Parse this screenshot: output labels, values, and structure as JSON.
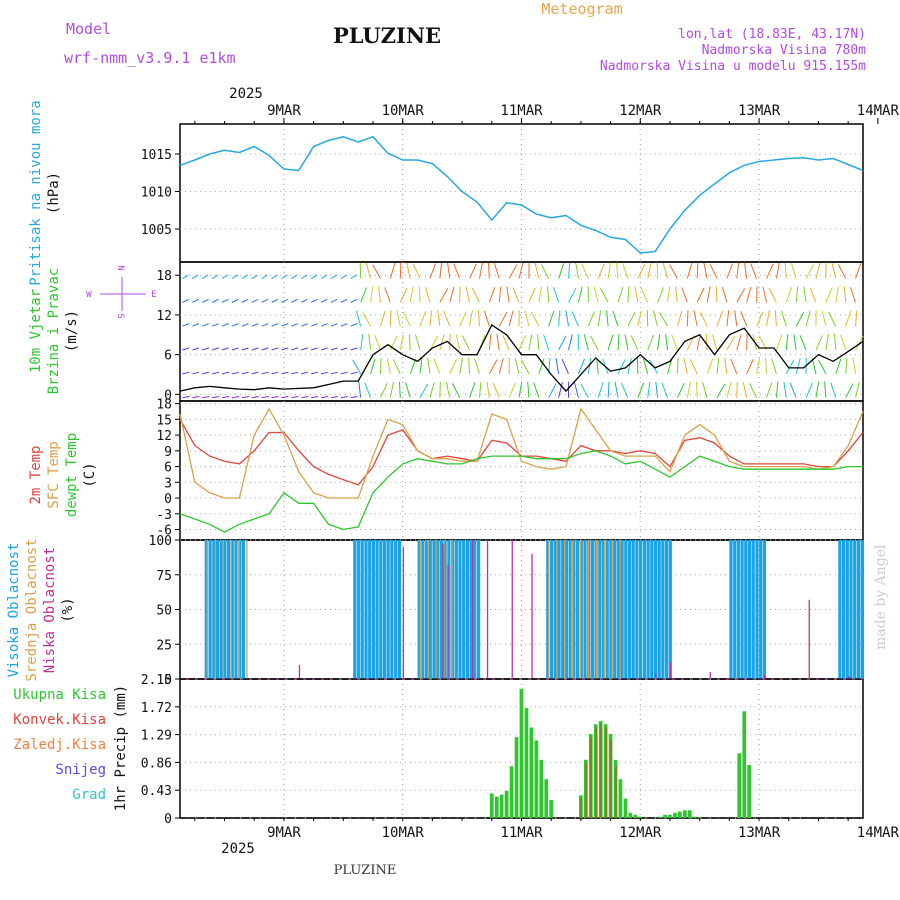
{
  "header": {
    "model_label": "Model",
    "model_name": "wrf-nmm_v3.9.1 e1km",
    "title": "PLUZINE",
    "meteogram_label": "Meteogram",
    "coords": "lon,lat (18.83E, 43.17N)",
    "elevation": "Nadmorska Visina 780m",
    "model_elevation": "Nadmorska Visina u modelu 915.155m",
    "footer_title": "PLUZINE",
    "credit": "made by Angel"
  },
  "time_axis": {
    "year": "2025",
    "days": [
      "9MAR",
      "10MAR",
      "11MAR",
      "12MAR",
      "13MAR",
      "14MAR"
    ],
    "start_hour": 3,
    "end_hour": 141
  },
  "colors": {
    "pressure": "#29a8e0",
    "wind_speed": "#000000",
    "t2m": "#e0443c",
    "tsfc": "#d9a24a",
    "dewpt": "#2fc62f",
    "cloud_high": "#1aa3e6",
    "cloud_mid": "#d9a24a",
    "cloud_low": "#c0309c",
    "precip_total": "#2fc62f",
    "precip_conv": "#e0443c",
    "precip_frozen": "#f08040",
    "precip_snow": "#5a4ce0",
    "precip_graupel": "#2ec6c6",
    "model_text": "#b04ce0",
    "meteogram_text": "#e8a84c"
  },
  "chart_data": [
    {
      "type": "line",
      "panel": "pressure",
      "ylabel": [
        "Pritisak na nivou mora",
        "(hPa)"
      ],
      "yticks": [
        1005,
        1010,
        1015
      ],
      "ylim": [
        1000.6,
        1019
      ],
      "series": [
        {
          "name": "Pritisak na nivou mora",
          "x": [
            3,
            6,
            9,
            12,
            15,
            18,
            21,
            24,
            27,
            30,
            33,
            36,
            39,
            42,
            45,
            48,
            51,
            54,
            57,
            60,
            63,
            66,
            69,
            72,
            75,
            78,
            81,
            84,
            87,
            90,
            93,
            96,
            99,
            102,
            105,
            108,
            111,
            114,
            117,
            120,
            123,
            126,
            129,
            132,
            135,
            138,
            141
          ],
          "values": [
            1013.5,
            1014.2,
            1015,
            1015.5,
            1015.2,
            1016,
            1014.8,
            1013,
            1012.8,
            1016,
            1016.8,
            1017.3,
            1016.6,
            1017.3,
            1015.1,
            1014.2,
            1014.2,
            1013.7,
            1012,
            1010,
            1008.6,
            1006.2,
            1008.5,
            1008.2,
            1007,
            1006.5,
            1006.8,
            1005.5,
            1004.8,
            1003.9,
            1003.6,
            1001.8,
            1002,
            1005,
            1007.5,
            1009.5,
            1011,
            1012.5,
            1013.5,
            1014,
            1014.2,
            1014.4,
            1014.5,
            1014.2,
            1014.4,
            1013.6,
            1012.8
          ]
        }
      ]
    },
    {
      "type": "line",
      "panel": "wind",
      "ylabel": [
        "10m Vjetar",
        "Brzina i Pravac",
        "(m/s)"
      ],
      "compass": {
        "n": "N",
        "s": "S",
        "w": "W",
        "e": "E"
      },
      "yticks": [
        0,
        6,
        12,
        18
      ],
      "ylim": [
        -1,
        20
      ],
      "series": [
        {
          "name": "Brzina",
          "x": [
            3,
            6,
            9,
            12,
            15,
            18,
            21,
            24,
            27,
            30,
            33,
            36,
            39,
            42,
            45,
            48,
            51,
            54,
            57,
            60,
            63,
            66,
            69,
            72,
            75,
            78,
            81,
            84,
            87,
            90,
            93,
            96,
            99,
            102,
            105,
            108,
            111,
            114,
            117,
            120,
            123,
            126,
            129,
            132,
            135,
            138,
            141
          ],
          "values": [
            0.5,
            1,
            1.2,
            1,
            0.8,
            0.7,
            1,
            0.8,
            0.9,
            1,
            1.5,
            2,
            2,
            6,
            7.5,
            6,
            5,
            7,
            8,
            6,
            6,
            10.5,
            9,
            6,
            6,
            3,
            0.5,
            3,
            5.5,
            3.5,
            4,
            6,
            4,
            5,
            8,
            9,
            6,
            9,
            10,
            7,
            7,
            4,
            4,
            6,
            5,
            6.5,
            8
          ]
        }
      ]
    },
    {
      "type": "line",
      "panel": "temperature",
      "ylabel": [
        "2m Temp",
        "SFC Temp",
        "dewpt Temp",
        "(C)"
      ],
      "yticks": [
        -6,
        -3,
        0,
        3,
        6,
        9,
        12,
        15,
        18
      ],
      "ylim": [
        -8,
        18.5
      ],
      "x": [
        3,
        6,
        9,
        12,
        15,
        18,
        21,
        24,
        27,
        30,
        33,
        36,
        39,
        42,
        45,
        48,
        51,
        54,
        57,
        60,
        63,
        66,
        69,
        72,
        75,
        78,
        81,
        84,
        87,
        90,
        93,
        96,
        99,
        102,
        105,
        108,
        111,
        114,
        117,
        120,
        123,
        126,
        129,
        132,
        135,
        138,
        141
      ],
      "series": [
        {
          "name": "2m Temp",
          "values": [
            15,
            10,
            8,
            7,
            6.5,
            9,
            12.5,
            12.5,
            9,
            6,
            4.5,
            3.5,
            2.5,
            6,
            12,
            13,
            9,
            7.5,
            8,
            7.5,
            7,
            11,
            10.5,
            8,
            8,
            7.5,
            7,
            10,
            9,
            9,
            8.5,
            9,
            8.5,
            6,
            11,
            11.5,
            10.5,
            8,
            6.5,
            6.5,
            6.5,
            6.5,
            6.5,
            6,
            6,
            9,
            12.5
          ]
        },
        {
          "name": "SFC Temp",
          "values": [
            16,
            3,
            1,
            0,
            0,
            12,
            17,
            12,
            5,
            1,
            0,
            0,
            0,
            8,
            15,
            14,
            9,
            7.5,
            7.5,
            7,
            7,
            16,
            15,
            7,
            6,
            5.5,
            6,
            17,
            13,
            9,
            8,
            8,
            8,
            5,
            12,
            14,
            12,
            7,
            6,
            6,
            6,
            6,
            6,
            5.5,
            6,
            10,
            16.5
          ]
        },
        {
          "name": "dewpt Temp",
          "values": [
            -3,
            -4,
            -5,
            -6.5,
            -5,
            -4,
            -3,
            1,
            -1,
            -1,
            -5,
            -6,
            -5.5,
            1,
            4,
            6.5,
            7.5,
            7,
            6.5,
            6.5,
            7.5,
            8,
            8,
            8,
            7.5,
            7.5,
            7.5,
            8.5,
            9,
            8,
            6.5,
            7,
            5.5,
            4,
            6,
            8,
            7,
            6,
            5.5,
            5.5,
            5.5,
            5.5,
            5.5,
            5.5,
            5.5,
            6,
            6
          ]
        }
      ]
    },
    {
      "type": "bar",
      "panel": "clouds",
      "ylabel": [
        "Visoka Oblacnost",
        "Srednja Oblacnost",
        "Niska Oblacnost",
        "(%)"
      ],
      "yticks": [
        0,
        25,
        50,
        75,
        100
      ],
      "ylim": [
        0,
        100
      ],
      "series": [
        {
          "name": "Visoka Oblacnost",
          "segments": [
            [
              8,
              16
            ],
            [
              38,
              47
            ],
            [
              51,
              63
            ],
            [
              77,
              102
            ],
            [
              114,
              121
            ],
            [
              136,
              141
            ]
          ],
          "values": 100
        },
        {
          "name": "Srednja Oblacnost",
          "segments": [
            [
              8,
              17
            ],
            [
              51,
              58
            ],
            [
              77,
              92
            ]
          ],
          "values": 100
        },
        {
          "name": "Niska Oblacnost",
          "bars": [
            [
              27,
              10
            ],
            [
              48,
              95
            ],
            [
              56,
              97
            ],
            [
              57,
              82
            ],
            [
              62,
              100
            ],
            [
              65,
              100
            ],
            [
              70,
              100
            ],
            [
              74,
              90
            ],
            [
              99,
              4
            ],
            [
              102,
              12
            ],
            [
              110,
              5
            ],
            [
              121,
              3
            ],
            [
              130,
              57
            ],
            [
              138,
              2
            ]
          ]
        }
      ]
    },
    {
      "type": "bar",
      "panel": "precip",
      "ylabel": [
        "1hr Precip (mm)"
      ],
      "legend_labels": [
        "Ukupna Kisa",
        "Konvek.Kisa",
        "Zaledj.Kisa",
        "Snijeg",
        "Grad"
      ],
      "yticks": [
        0,
        0.43,
        0.86,
        1.29,
        1.72,
        2.15
      ],
      "ylim": [
        0,
        2.15
      ],
      "series": [
        {
          "name": "Ukupna Kisa",
          "x": [
            66,
            67,
            68,
            69,
            70,
            71,
            72,
            73,
            74,
            75,
            76,
            77,
            78,
            84,
            85,
            86,
            87,
            88,
            89,
            90,
            91,
            92,
            93,
            94,
            95,
            96,
            100,
            101,
            102,
            103,
            104,
            105,
            106,
            107,
            108,
            116,
            117,
            118
          ],
          "values": [
            0.38,
            0.33,
            0.36,
            0.42,
            0.8,
            1.25,
            2.0,
            1.7,
            1.4,
            1.2,
            0.9,
            0.6,
            0.28,
            0.35,
            0.9,
            1.3,
            1.45,
            1.5,
            1.45,
            1.3,
            0.9,
            0.6,
            0.3,
            0.08,
            0.05,
            0.02,
            0.02,
            0.05,
            0.05,
            0.08,
            0.1,
            0.12,
            0.12,
            0.02,
            0.01,
            1.0,
            1.65,
            0.82
          ]
        },
        {
          "name": "Konvek.Kisa",
          "x": [
            84,
            85,
            86,
            87,
            88,
            89,
            90,
            91
          ],
          "values": [
            0.3,
            0.85,
            1.25,
            1.4,
            1.45,
            1.4,
            1.2,
            0.8
          ]
        }
      ]
    }
  ]
}
